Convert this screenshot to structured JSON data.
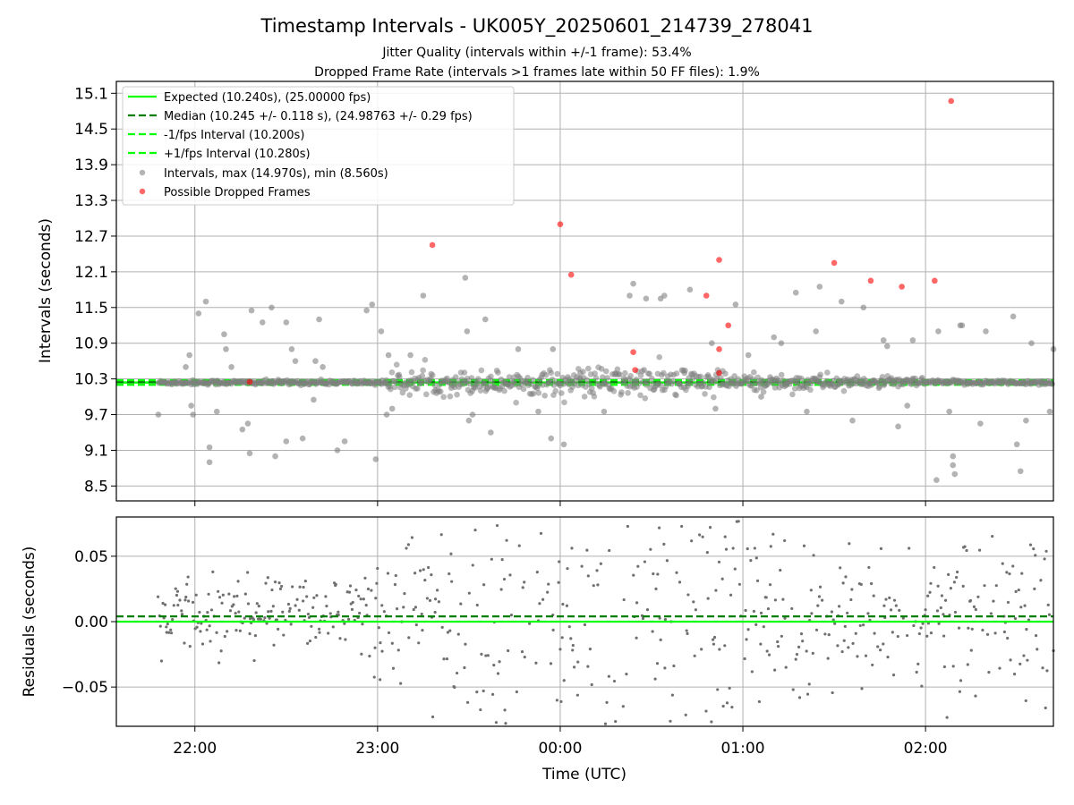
{
  "title": "Timestamp Intervals - UK005Y_20250601_214739_278041",
  "subtitle_1": "Jitter Quality (intervals within +/-1 frame): 53.4%",
  "subtitle_2": "Dropped Frame Rate (intervals >1 frames late within 50 FF files): 1.9%",
  "colors": {
    "expected": "#00ff00",
    "median": "#007f00",
    "interval_lines": "#00ff00",
    "points": "#808080",
    "dropped": "#ff0000",
    "grid": "#b0b0b0",
    "residual_points": "#707070"
  },
  "chart_data": [
    {
      "type": "scatter",
      "ylabel": "Intervals (seconds)",
      "xlabel": "",
      "xlim": [
        21.57,
        26.7
      ],
      "ylim": [
        8.25,
        15.3
      ],
      "x_ticks": [
        22,
        23,
        24,
        25,
        26
      ],
      "y_ticks": [
        8.5,
        9.1,
        9.7,
        10.3,
        10.9,
        11.5,
        12.1,
        12.7,
        13.3,
        13.9,
        14.5,
        15.1
      ],
      "y_tick_labels": [
        "8.5",
        "9.1",
        "9.7",
        "10.3",
        "10.9",
        "11.5",
        "12.1",
        "12.7",
        "13.3",
        "13.9",
        "14.5",
        "15.1"
      ],
      "grid": true,
      "legend_position": "upper-left",
      "legend": [
        "Expected (10.240s), (25.00000 fps)",
        "Median (10.245 +/- 0.118 s), (24.98763 +/- 0.29 fps)",
        "-1/fps Interval (10.200s)",
        "+1/fps Interval (10.280s)",
        "Intervals, max (14.970s), min (8.560s)",
        "Possible Dropped Frames"
      ],
      "hlines": {
        "expected": 10.24,
        "median": 10.245,
        "minus_1fps": 10.2,
        "plus_1fps": 10.28
      },
      "interval_points": {
        "x": [
          21.8,
          21.97,
          21.98,
          21.99,
          22.02,
          22.06,
          22.08,
          22.08,
          22.12,
          22.16,
          22.17,
          22.26,
          22.29,
          22.3,
          22.31,
          22.37,
          22.42,
          22.44,
          22.5,
          22.5,
          22.55,
          22.59,
          22.66,
          22.68,
          22.7,
          22.78,
          22.82,
          22.94,
          22.97,
          22.99,
          23.02,
          23.05,
          23.06,
          23.08,
          23.25,
          23.48,
          23.49,
          23.5,
          23.59,
          23.62,
          23.77,
          23.88,
          23.95,
          23.96,
          24.02,
          24.11,
          24.4,
          24.38,
          24.47,
          24.55,
          24.57,
          24.71,
          24.83,
          24.85,
          24.96,
          25.03,
          25.17,
          25.21,
          25.29,
          25.4,
          25.42,
          25.54,
          25.66,
          25.77,
          25.79,
          25.85,
          25.93,
          26.07,
          26.13,
          26.19,
          26.2,
          26.33,
          26.48,
          26.5,
          26.52,
          26.55,
          26.58,
          26.68,
          26.7,
          26.15,
          26.15,
          26.06,
          26.16,
          21.95,
          22.2,
          22.53,
          22.65,
          23.18,
          23.52,
          24.24,
          24.68,
          25.1,
          25.35,
          25.6,
          25.9,
          26.3
        ],
        "y": [
          9.7,
          10.7,
          9.85,
          9.7,
          11.4,
          11.6,
          9.15,
          8.9,
          9.75,
          11.05,
          10.8,
          9.45,
          9.55,
          9.05,
          11.45,
          11.25,
          11.5,
          9.0,
          9.25,
          11.25,
          10.6,
          9.3,
          10.6,
          11.3,
          10.5,
          9.1,
          9.25,
          11.45,
          11.55,
          8.95,
          11.1,
          9.7,
          10.7,
          9.8,
          11.7,
          12.0,
          11.1,
          9.6,
          11.3,
          9.4,
          10.8,
          9.75,
          9.3,
          10.8,
          9.2,
          10.4,
          11.9,
          11.7,
          11.65,
          11.65,
          11.7,
          11.8,
          10.9,
          9.8,
          11.55,
          10.7,
          11.0,
          10.9,
          11.75,
          11.1,
          11.85,
          11.6,
          11.5,
          10.95,
          10.85,
          9.5,
          10.95,
          11.1,
          9.75,
          11.2,
          11.2,
          11.1,
          11.35,
          9.2,
          8.75,
          9.6,
          10.9,
          9.75,
          10.8,
          9.0,
          8.85,
          8.6,
          8.7,
          10.5,
          10.5,
          10.8,
          9.95,
          10.7,
          9.7,
          9.75,
          10.4,
          10.0,
          9.75,
          9.6,
          9.85,
          9.55
        ]
      },
      "dropped_frames": {
        "x": [
          22.3,
          23.3,
          24.0,
          24.06,
          24.4,
          24.41,
          24.8,
          24.87,
          24.87,
          24.87,
          24.92,
          25.5,
          25.7,
          25.87,
          26.05,
          26.14
        ],
        "y": [
          10.25,
          12.55,
          12.9,
          12.05,
          10.75,
          10.45,
          11.7,
          12.3,
          10.8,
          10.4,
          11.2,
          12.25,
          11.95,
          11.85,
          11.95,
          14.97
        ]
      }
    },
    {
      "type": "scatter",
      "ylabel": "Residuals (seconds)",
      "xlabel": "Time (UTC)",
      "xlim": [
        21.57,
        26.7
      ],
      "ylim": [
        -0.08,
        0.08
      ],
      "x_ticks": [
        22,
        23,
        24,
        25,
        26
      ],
      "x_tick_labels": [
        "22:00",
        "23:00",
        "00:00",
        "01:00",
        "02:00"
      ],
      "y_ticks": [
        -0.05,
        0.0,
        0.05
      ],
      "y_tick_labels": [
        "−0.05",
        "0.00",
        "0.05"
      ],
      "grid": true,
      "hlines": {
        "zero": 0.0,
        "median_residual": 0.004
      }
    }
  ]
}
